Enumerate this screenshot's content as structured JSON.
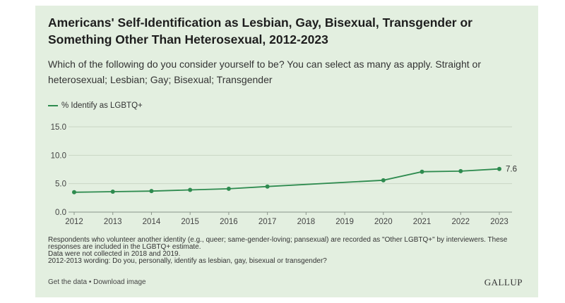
{
  "title": "Americans' Self-Identification as Lesbian, Gay, Bisexual, Transgender or Something Other Than Heterosexual, 2012-2023",
  "subtitle": "Which of the following do you consider yourself to be? You can select as many as apply. Straight or heterosexual; Lesbian; Gay; Bisexual; Transgender",
  "legend_label": "% Identify as LGBTQ+",
  "colors": {
    "series": "#2e8b4f",
    "background": "#e3efe0",
    "grid": "#c9d6c5"
  },
  "notes": [
    "Respondents who volunteer another identity (e.g., queer; same-gender-loving; pansexual) are recorded as \"Other LGBTQ+\" by interviewers. These",
    "responses are included in the LGBTQ+ estimate.",
    "Data were not collected in 2018 and 2019.",
    "2012-2013 wording: Do you, personally, identify as lesbian, gay, bisexual or transgender?"
  ],
  "footer": {
    "get_data": "Get the data",
    "separator": " • ",
    "download": "Download image",
    "logo": "GALLUP"
  },
  "chart_data": {
    "type": "line",
    "x_ticks": [
      "2012",
      "2013",
      "2014",
      "2015",
      "2016",
      "2017",
      "2018",
      "2019",
      "2020",
      "2021",
      "2022",
      "2023"
    ],
    "y_ticks": [
      "0.0",
      "5.0",
      "10.0",
      "15.0"
    ],
    "ylim": [
      0,
      15
    ],
    "grid": true,
    "legend_position": "top-left",
    "series": [
      {
        "name": "% Identify as LGBTQ+",
        "points": [
          {
            "x": 2012,
            "y": 3.5
          },
          {
            "x": 2013,
            "y": 3.6
          },
          {
            "x": 2014,
            "y": 3.7
          },
          {
            "x": 2015,
            "y": 3.9
          },
          {
            "x": 2016,
            "y": 4.1
          },
          {
            "x": 2017,
            "y": 4.5
          },
          {
            "x": 2020,
            "y": 5.6
          },
          {
            "x": 2021,
            "y": 7.1
          },
          {
            "x": 2022,
            "y": 7.2
          },
          {
            "x": 2023,
            "y": 7.6
          }
        ]
      }
    ],
    "data_label": "7.6"
  }
}
